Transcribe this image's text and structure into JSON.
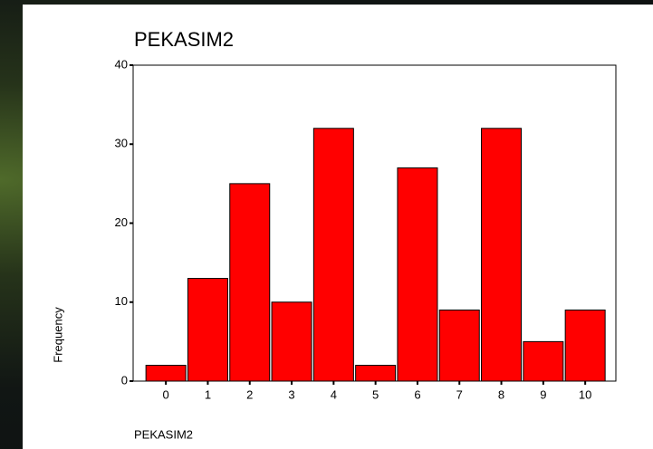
{
  "chart_data": {
    "type": "bar",
    "title": "PEKASIM2",
    "categories": [
      "0",
      "1",
      "2",
      "3",
      "4",
      "5",
      "6",
      "7",
      "8",
      "9",
      "10"
    ],
    "values": [
      2,
      13,
      25,
      10,
      32,
      2,
      27,
      9,
      32,
      5,
      9
    ],
    "color": "#ff0000",
    "xlabel": "PEKASIM2",
    "ylabel": "Frequency",
    "ylim": [
      0,
      40
    ],
    "yticks": [
      0,
      10,
      20,
      30,
      40
    ],
    "grid": false
  }
}
